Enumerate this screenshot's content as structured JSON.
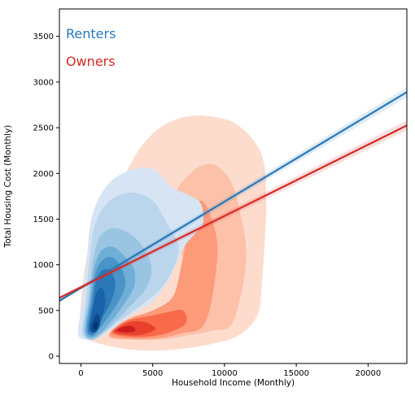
{
  "chart_data": {
    "type": "kde-density-with-regression",
    "xlabel": "Household Income (Monthly)",
    "ylabel": "Total Housing Cost (Monthly)",
    "xlim": [
      -1500,
      22700
    ],
    "ylim": [
      -80,
      3800
    ],
    "x_ticks": [
      0,
      5000,
      10000,
      15000,
      20000
    ],
    "y_ticks": [
      0,
      500,
      1000,
      1500,
      2000,
      2500,
      3000,
      3500
    ],
    "grid": false,
    "legend_placement": "top-left",
    "series": [
      {
        "name": "Renters",
        "color": "#2878b8",
        "palette": [
          "#d6e4f4",
          "#bad5ec",
          "#9ac5e2",
          "#6faed6",
          "#4a94c7",
          "#2b78b8",
          "#1a62a8",
          "#0b4a93",
          "#083370"
        ],
        "regression_line": {
          "x": [
            -1500,
            22700
          ],
          "y": [
            606,
            2890
          ]
        },
        "density_peak": {
          "x": 1000,
          "y": 350
        }
      },
      {
        "name": "Owners",
        "color": "#d42b25",
        "palette": [
          "#fddcce",
          "#fcc1a8",
          "#fc9a7a",
          "#f86a4a",
          "#e8412e",
          "#cb1b1e"
        ],
        "regression_line": {
          "x": [
            -1500,
            22700
          ],
          "y": [
            638,
            2525
          ]
        },
        "density_peak": {
          "x": 3000,
          "y": 400
        }
      }
    ],
    "density_contours": [
      {
        "series": "Owners",
        "level": 0,
        "points": [
          [
            0,
            250
          ],
          [
            0,
            600
          ],
          [
            500,
            1150
          ],
          [
            1500,
            1550
          ],
          [
            2800,
            1900
          ],
          [
            4000,
            2250
          ],
          [
            5500,
            2500
          ],
          [
            7300,
            2620
          ],
          [
            9200,
            2620
          ],
          [
            11000,
            2520
          ],
          [
            12600,
            2200
          ],
          [
            12900,
            1700
          ],
          [
            12800,
            1250
          ],
          [
            12600,
            800
          ],
          [
            12300,
            450
          ],
          [
            11000,
            230
          ],
          [
            9000,
            130
          ],
          [
            7000,
            80
          ],
          [
            5000,
            60
          ],
          [
            3000,
            80
          ],
          [
            1500,
            130
          ],
          [
            500,
            180
          ]
        ]
      },
      {
        "series": "Owners",
        "level": 1,
        "points": [
          [
            2000,
            200
          ],
          [
            3500,
            180
          ],
          [
            5500,
            180
          ],
          [
            7500,
            230
          ],
          [
            9200,
            280
          ],
          [
            10500,
            350
          ],
          [
            11300,
            800
          ],
          [
            11500,
            1200
          ],
          [
            10900,
            1700
          ],
          [
            10300,
            1950
          ],
          [
            9200,
            2100
          ],
          [
            8000,
            2050
          ],
          [
            6800,
            1850
          ],
          [
            6400,
            1600
          ],
          [
            6600,
            1300
          ],
          [
            7300,
            1000
          ],
          [
            7800,
            750
          ],
          [
            6500,
            600
          ],
          [
            5000,
            480
          ],
          [
            3600,
            380
          ],
          [
            2500,
            300
          ]
        ]
      },
      {
        "series": "Owners",
        "level": 2,
        "points": [
          [
            2000,
            220
          ],
          [
            3500,
            190
          ],
          [
            5500,
            200
          ],
          [
            7000,
            250
          ],
          [
            8500,
            330
          ],
          [
            9200,
            700
          ],
          [
            9500,
            1200
          ],
          [
            9000,
            1550
          ],
          [
            8300,
            1700
          ],
          [
            7600,
            1450
          ],
          [
            7000,
            1000
          ],
          [
            6400,
            650
          ],
          [
            5000,
            500
          ],
          [
            3500,
            420
          ],
          [
            2500,
            330
          ]
        ]
      },
      {
        "series": "Owners",
        "level": 3,
        "points": [
          [
            2200,
            250
          ],
          [
            3500,
            210
          ],
          [
            5000,
            220
          ],
          [
            6300,
            270
          ],
          [
            7300,
            360
          ],
          [
            7100,
            500
          ],
          [
            6000,
            480
          ],
          [
            4800,
            440
          ],
          [
            3500,
            400
          ],
          [
            2600,
            330
          ]
        ]
      },
      {
        "series": "Owners",
        "level": 4,
        "points": [
          [
            2300,
            260
          ],
          [
            3400,
            230
          ],
          [
            4400,
            240
          ],
          [
            5200,
            300
          ],
          [
            4500,
            370
          ],
          [
            3600,
            380
          ],
          [
            2800,
            330
          ]
        ]
      },
      {
        "series": "Owners",
        "level": 5,
        "points": [
          [
            2500,
            280
          ],
          [
            3200,
            260
          ],
          [
            3800,
            280
          ],
          [
            3500,
            330
          ],
          [
            2900,
            320
          ]
        ]
      },
      {
        "series": "Renters",
        "level": 0,
        "points": [
          [
            -200,
            250
          ],
          [
            100,
            600
          ],
          [
            400,
            1050
          ],
          [
            800,
            1550
          ],
          [
            2000,
            1900
          ],
          [
            3800,
            2050
          ],
          [
            5200,
            2030
          ],
          [
            6300,
            1850
          ],
          [
            7700,
            1750
          ],
          [
            8400,
            1650
          ],
          [
            8500,
            1450
          ],
          [
            8000,
            1350
          ],
          [
            7200,
            1200
          ],
          [
            6600,
            1000
          ],
          [
            6000,
            800
          ],
          [
            5000,
            600
          ],
          [
            3500,
            450
          ],
          [
            2200,
            300
          ],
          [
            1200,
            200
          ],
          [
            400,
            180
          ]
        ]
      },
      {
        "series": "Renters",
        "level": 1,
        "points": [
          [
            100,
            250
          ],
          [
            300,
            550
          ],
          [
            600,
            1050
          ],
          [
            1000,
            1450
          ],
          [
            2000,
            1700
          ],
          [
            3500,
            1790
          ],
          [
            5000,
            1700
          ],
          [
            6000,
            1450
          ],
          [
            6800,
            1200
          ],
          [
            6400,
            950
          ],
          [
            5500,
            730
          ],
          [
            4200,
            560
          ],
          [
            2800,
            400
          ],
          [
            1800,
            280
          ],
          [
            900,
            180
          ]
        ]
      },
      {
        "series": "Renters",
        "level": 2,
        "points": [
          [
            200,
            270
          ],
          [
            500,
            600
          ],
          [
            800,
            1000
          ],
          [
            1300,
            1300
          ],
          [
            2200,
            1400
          ],
          [
            3300,
            1350
          ],
          [
            4300,
            1200
          ],
          [
            4900,
            980
          ],
          [
            4600,
            760
          ],
          [
            3500,
            560
          ],
          [
            2400,
            380
          ],
          [
            1500,
            250
          ],
          [
            700,
            180
          ]
        ]
      },
      {
        "series": "Renters",
        "level": 3,
        "points": [
          [
            300,
            280
          ],
          [
            600,
            600
          ],
          [
            900,
            950
          ],
          [
            1400,
            1150
          ],
          [
            2200,
            1200
          ],
          [
            3000,
            1100
          ],
          [
            3700,
            950
          ],
          [
            3700,
            760
          ],
          [
            3000,
            570
          ],
          [
            2200,
            400
          ],
          [
            1400,
            260
          ],
          [
            700,
            200
          ]
        ]
      },
      {
        "series": "Renters",
        "level": 4,
        "points": [
          [
            400,
            290
          ],
          [
            700,
            600
          ],
          [
            1000,
            900
          ],
          [
            1500,
            1050
          ],
          [
            2200,
            1080
          ],
          [
            2800,
            970
          ],
          [
            3100,
            800
          ],
          [
            2700,
            620
          ],
          [
            2000,
            450
          ],
          [
            1300,
            300
          ],
          [
            800,
            220
          ]
        ]
      },
      {
        "series": "Renters",
        "level": 5,
        "points": [
          [
            500,
            300
          ],
          [
            800,
            580
          ],
          [
            1100,
            850
          ],
          [
            1600,
            950
          ],
          [
            2100,
            920
          ],
          [
            2400,
            780
          ],
          [
            2100,
            600
          ],
          [
            1600,
            450
          ],
          [
            1100,
            300
          ],
          [
            800,
            240
          ]
        ]
      },
      {
        "series": "Renters",
        "level": 6,
        "points": [
          [
            600,
            300
          ],
          [
            800,
            500
          ],
          [
            1100,
            700
          ],
          [
            1500,
            740
          ],
          [
            1700,
            600
          ],
          [
            1500,
            450
          ],
          [
            1200,
            330
          ],
          [
            900,
            260
          ]
        ]
      },
      {
        "series": "Renters",
        "level": 7,
        "points": [
          [
            700,
            300
          ],
          [
            900,
            420
          ],
          [
            1200,
            460
          ],
          [
            1350,
            380
          ],
          [
            1200,
            300
          ],
          [
            950,
            260
          ]
        ]
      },
      {
        "series": "Renters",
        "level": 8,
        "points": [
          [
            850,
            320
          ],
          [
            1050,
            380
          ],
          [
            1180,
            340
          ],
          [
            1050,
            290
          ]
        ]
      }
    ]
  }
}
